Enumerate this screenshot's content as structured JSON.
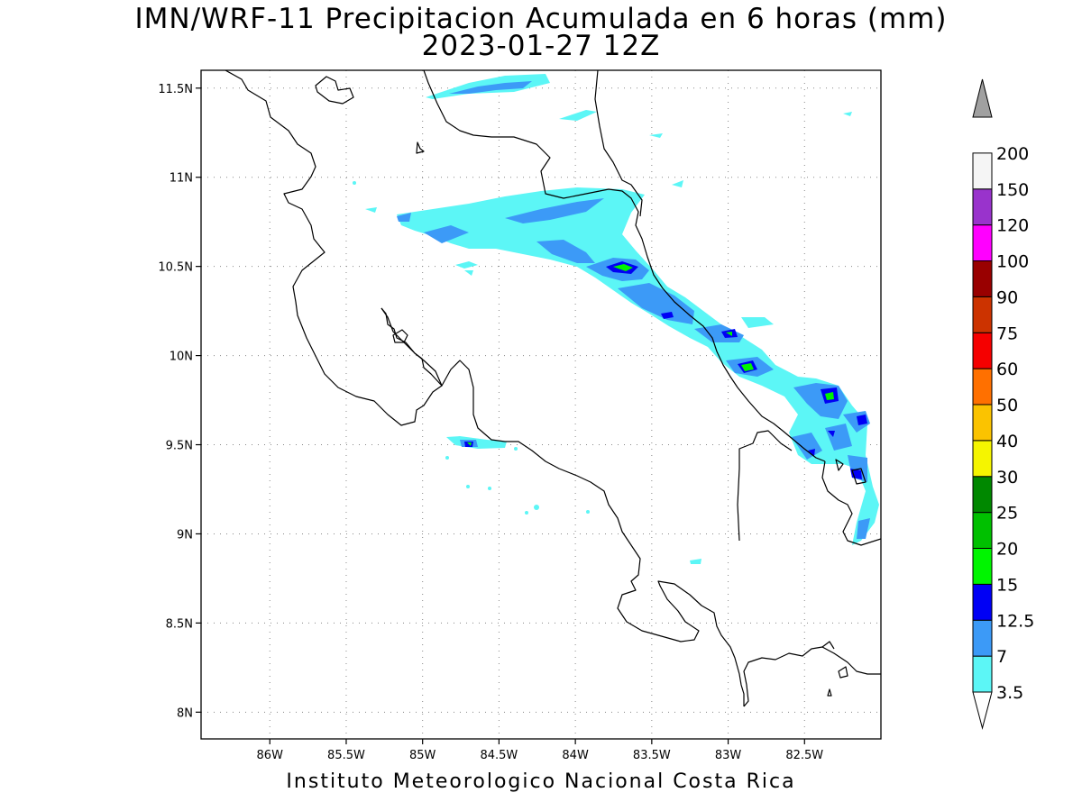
{
  "title": {
    "line1": "IMN/WRF-11 Precipitacion Acumulada en 6 horas (mm)",
    "line2": "2023-01-27 12Z"
  },
  "footer": "Instituto Meteorologico Nacional Costa Rica",
  "map": {
    "lon_range": [
      -86.45,
      -82.0
    ],
    "lat_range": [
      7.85,
      11.6
    ],
    "lon_ticks": [
      {
        "value": -86.0,
        "label": "86W"
      },
      {
        "value": -85.5,
        "label": "85.5W"
      },
      {
        "value": -85.0,
        "label": "85W"
      },
      {
        "value": -84.5,
        "label": "84.5W"
      },
      {
        "value": -84.0,
        "label": "84W"
      },
      {
        "value": -83.5,
        "label": "83.5W"
      },
      {
        "value": -83.0,
        "label": "83W"
      },
      {
        "value": -82.5,
        "label": "82.5W"
      }
    ],
    "lat_ticks": [
      {
        "value": 8.0,
        "label": "8N"
      },
      {
        "value": 8.5,
        "label": "8.5N"
      },
      {
        "value": 9.0,
        "label": "9N"
      },
      {
        "value": 9.5,
        "label": "9.5N"
      },
      {
        "value": 10.0,
        "label": "10N"
      },
      {
        "value": 10.5,
        "label": "10.5N"
      },
      {
        "value": 11.0,
        "label": "11N"
      },
      {
        "value": 11.5,
        "label": "11.5N"
      }
    ],
    "grid": true
  },
  "colorbar": {
    "levels": [
      {
        "label": "3.5",
        "color": "#5cf6f6"
      },
      {
        "label": "7",
        "color": "#3c9af7"
      },
      {
        "label": "12.5",
        "color": "#0000f5"
      },
      {
        "label": "15",
        "color": "#00f500"
      },
      {
        "label": "20",
        "color": "#00c000"
      },
      {
        "label": "25",
        "color": "#008800"
      },
      {
        "label": "30",
        "color": "#f5f500"
      },
      {
        "label": "40",
        "color": "#fbc300"
      },
      {
        "label": "50",
        "color": "#ff7000"
      },
      {
        "label": "60",
        "color": "#f50000"
      },
      {
        "label": "75",
        "color": "#cc3300"
      },
      {
        "label": "90",
        "color": "#990000"
      },
      {
        "label": "100",
        "color": "#ff00ff"
      },
      {
        "label": "120",
        "color": "#9933cc"
      },
      {
        "label": "150",
        "color": "#f5f5f5"
      },
      {
        "label": "200",
        "color": "#a0a0a0"
      }
    ],
    "top_arrow_color": "#a0a0a0",
    "bottom_arrow_color": "#ffffff"
  }
}
